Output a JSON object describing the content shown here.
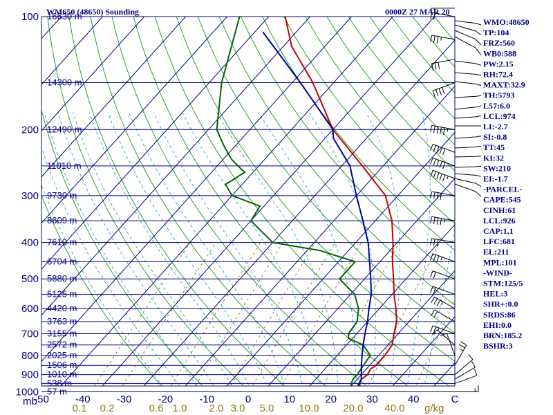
{
  "header": {
    "station": "WM650 (48650) Sounding",
    "time": "0000Z 27 MAR 20"
  },
  "chart_data": {
    "type": "skew-t",
    "title": "WM650 (48650) Sounding",
    "xlabel": "",
    "ylabel": "mb",
    "pressure_ticks": [
      {
        "p": 100,
        "label": "100"
      },
      {
        "p": 200,
        "label": "200"
      },
      {
        "p": 300,
        "label": "300"
      },
      {
        "p": 400,
        "label": "400"
      },
      {
        "p": 500,
        "label": "500"
      },
      {
        "p": 600,
        "label": "600"
      },
      {
        "p": 700,
        "label": "700"
      },
      {
        "p": 800,
        "label": "800"
      },
      {
        "p": 900,
        "label": "900"
      },
      {
        "p": 1000,
        "label": "1000"
      }
    ],
    "pressure_unit_label": "mb",
    "temperature_ticks": [
      {
        "t": -50,
        "label": "-50"
      },
      {
        "t": -40,
        "label": "-40"
      },
      {
        "t": -30,
        "label": "-30"
      },
      {
        "t": -20,
        "label": "-20"
      },
      {
        "t": -10,
        "label": "-10"
      },
      {
        "t": 0,
        "label": "0"
      },
      {
        "t": 10,
        "label": "10"
      },
      {
        "t": 20,
        "label": "20"
      },
      {
        "t": 30,
        "label": "30"
      },
      {
        "t": 40,
        "label": "40"
      },
      {
        "t": 50,
        "label": "C"
      }
    ],
    "mixing_ratio_ticks": [
      "0.1",
      "0.2",
      "0.6",
      "1.0",
      "2.0",
      "3.0",
      "5.0",
      "10.0",
      "20.0",
      "40.0"
    ],
    "mixing_ratio_unit": "g/kg",
    "height_labels": [
      {
        "p": 100,
        "label": "16630 m"
      },
      {
        "p": 150,
        "label": "14300 m"
      },
      {
        "p": 200,
        "label": "12490 m"
      },
      {
        "p": 250,
        "label": "11010 m"
      },
      {
        "p": 300,
        "label": "9730 m"
      },
      {
        "p": 350,
        "label": "8609 m"
      },
      {
        "p": 400,
        "label": "7610 m"
      },
      {
        "p": 450,
        "label": "6704 m"
      },
      {
        "p": 500,
        "label": "5880 m"
      },
      {
        "p": 550,
        "label": "5125 m"
      },
      {
        "p": 600,
        "label": "4420 m"
      },
      {
        "p": 650,
        "label": "3763 m"
      },
      {
        "p": 700,
        "label": "3155 m"
      },
      {
        "p": 750,
        "label": "2572 m"
      },
      {
        "p": 800,
        "label": "2025 m"
      },
      {
        "p": 850,
        "label": "1506 m"
      },
      {
        "p": 900,
        "label": "1010 m"
      },
      {
        "p": 950,
        "label": "538 m"
      },
      {
        "p": 1000,
        "label": "57 m"
      }
    ],
    "series": [
      {
        "name": "temperature",
        "color": "#c00000",
        "points": [
          [
            1003,
            24
          ],
          [
            985,
            23
          ],
          [
            950,
            21.5
          ],
          [
            925,
            21
          ],
          [
            900,
            21.5
          ],
          [
            870,
            21
          ],
          [
            850,
            21.5
          ],
          [
            800,
            21.5
          ],
          [
            750,
            21
          ],
          [
            700,
            19
          ],
          [
            650,
            17
          ],
          [
            600,
            14
          ],
          [
            550,
            10.5
          ],
          [
            500,
            7
          ],
          [
            450,
            3
          ],
          [
            400,
            -1
          ],
          [
            350,
            -6
          ],
          [
            300,
            -13
          ],
          [
            250,
            -25
          ],
          [
            200,
            -40
          ],
          [
            150,
            -55
          ],
          [
            120,
            -68
          ],
          [
            100,
            -76
          ],
          [
            95,
            -76
          ],
          [
            90,
            -75
          ]
        ]
      },
      {
        "name": "dewpoint",
        "color": "#006400",
        "points": [
          [
            1003,
            20
          ],
          [
            985,
            20.5
          ],
          [
            950,
            19.5
          ],
          [
            925,
            19
          ],
          [
            900,
            19
          ],
          [
            850,
            18.5
          ],
          [
            800,
            18
          ],
          [
            750,
            14
          ],
          [
            720,
            9
          ],
          [
            700,
            8
          ],
          [
            650,
            7.5
          ],
          [
            600,
            5
          ],
          [
            550,
            1
          ],
          [
            500,
            -6
          ],
          [
            450,
            -6
          ],
          [
            420,
            -17
          ],
          [
            400,
            -30
          ],
          [
            350,
            -40
          ],
          [
            320,
            -41
          ],
          [
            300,
            -50
          ],
          [
            280,
            -54
          ],
          [
            260,
            -52
          ],
          [
            250,
            -55
          ],
          [
            240,
            -58
          ],
          [
            220,
            -63
          ],
          [
            200,
            -68
          ],
          [
            150,
            -77
          ],
          [
            100,
            -87
          ],
          [
            95,
            -87
          ],
          [
            90,
            -86
          ]
        ]
      },
      {
        "name": "parcel",
        "color": "#0000a0",
        "points": [
          [
            1003,
            24
          ],
          [
            985,
            23
          ],
          [
            960,
            21.5
          ],
          [
            926,
            21
          ],
          [
            900,
            20
          ],
          [
            850,
            18
          ],
          [
            800,
            16
          ],
          [
            750,
            14
          ],
          [
            700,
            12
          ],
          [
            650,
            10
          ],
          [
            600,
            7.5
          ],
          [
            550,
            5
          ],
          [
            500,
            1.5
          ],
          [
            450,
            -2.5
          ],
          [
            400,
            -7
          ],
          [
            350,
            -13
          ],
          [
            300,
            -20
          ],
          [
            250,
            -28
          ],
          [
            211,
            -38
          ],
          [
            200,
            -40
          ],
          [
            150,
            -58
          ],
          [
            110,
            -78
          ]
        ]
      }
    ],
    "wind_barbs": [
      {
        "p": 1000,
        "dir": 90,
        "spd": 5
      },
      {
        "p": 950,
        "dir": 110,
        "spd": 10
      },
      {
        "p": 925,
        "dir": 120,
        "spd": 10
      },
      {
        "p": 900,
        "dir": 130,
        "spd": 10
      },
      {
        "p": 850,
        "dir": 150,
        "spd": 15
      },
      {
        "p": 800,
        "dir": 200,
        "spd": 10
      },
      {
        "p": 750,
        "dir": 230,
        "spd": 10
      },
      {
        "p": 700,
        "dir": 250,
        "spd": 15
      },
      {
        "p": 650,
        "dir": 240,
        "spd": 20
      },
      {
        "p": 600,
        "dir": 240,
        "spd": 25
      },
      {
        "p": 550,
        "dir": 250,
        "spd": 20
      },
      {
        "p": 500,
        "dir": 250,
        "spd": 20
      },
      {
        "p": 450,
        "dir": 250,
        "spd": 25
      },
      {
        "p": 400,
        "dir": 260,
        "spd": 30
      },
      {
        "p": 350,
        "dir": 260,
        "spd": 35
      },
      {
        "p": 300,
        "dir": 260,
        "spd": 40
      },
      {
        "p": 270,
        "dir": 250,
        "spd": 45
      },
      {
        "p": 250,
        "dir": 250,
        "spd": 50
      },
      {
        "p": 230,
        "dir": 250,
        "spd": 50
      },
      {
        "p": 200,
        "dir": 260,
        "spd": 45
      },
      {
        "p": 150,
        "dir": 290,
        "spd": 40
      },
      {
        "p": 130,
        "dir": 280,
        "spd": 30
      },
      {
        "p": 115,
        "dir": 260,
        "spd": 25
      },
      {
        "p": 100,
        "dir": 260,
        "spd": 20
      },
      {
        "p": 95,
        "dir": 270,
        "spd": 20
      }
    ],
    "indices": [
      "WMO:48650",
      "TP:104",
      "FRZ:560",
      "WB0:588",
      "PW:2.15",
      "RH:72.4",
      "MAXT:32.9",
      "TH:5793",
      "L57:6.0",
      "LCL:974",
      "LI:-2.7",
      "SI:-0.8",
      "TT:45",
      "KI:32",
      "SW:210",
      "EI:-1.7",
      "-PARCEL-",
      "CAPE:545",
      "CINH:61",
      "LCL:926",
      "CAP:1.1",
      "LFC:681",
      "EL:211",
      "MPL:101",
      "-WIND-",
      "STM:125/5",
      "HEL:3",
      "SHR+:0.0",
      "SRDS:86",
      "EHI:0.0",
      "BRN:185.2",
      "BSHR:3"
    ]
  }
}
